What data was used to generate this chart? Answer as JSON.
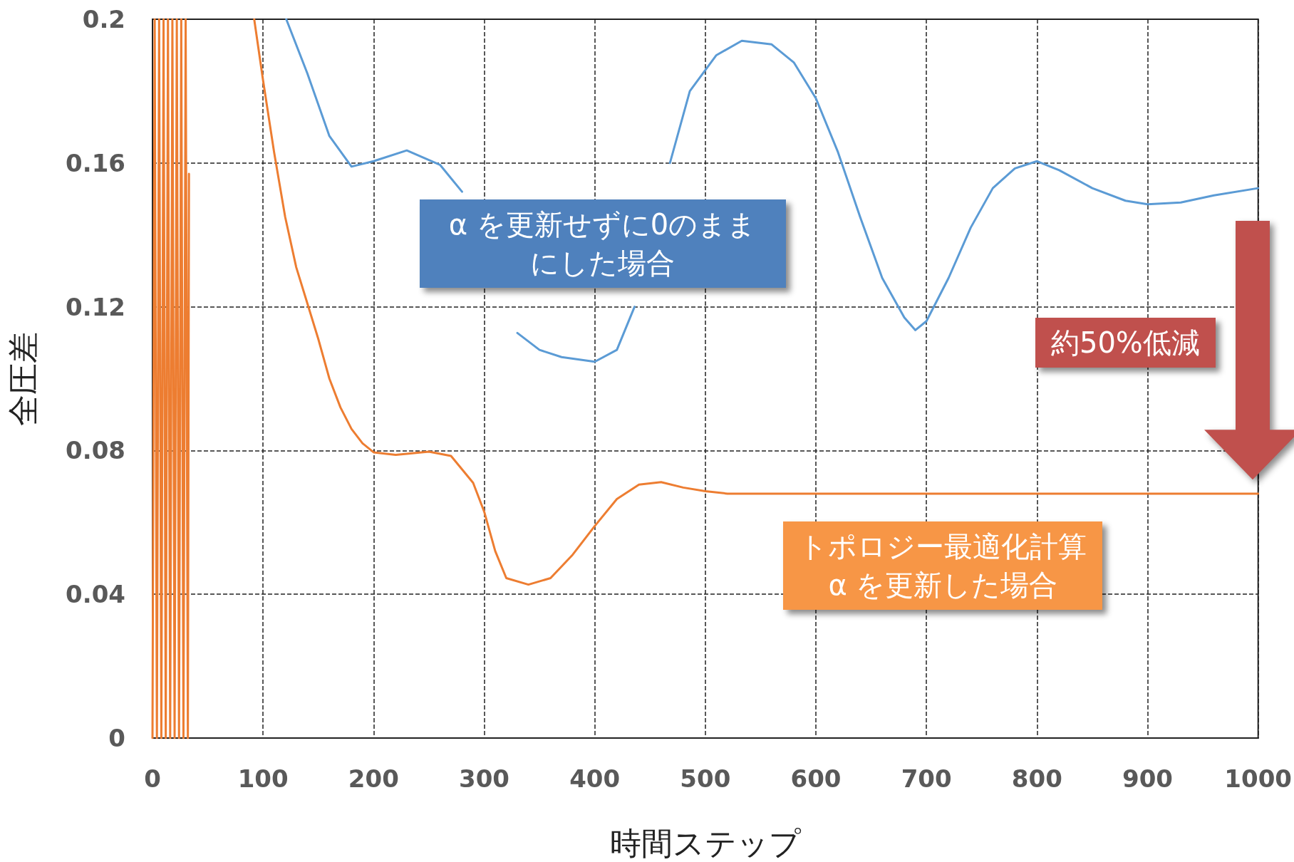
{
  "chart_data": {
    "type": "line",
    "xlabel": "時間ステップ",
    "ylabel": "全圧差",
    "xlim": [
      0,
      1000
    ],
    "xticks": [
      0,
      100,
      200,
      300,
      400,
      500,
      600,
      700,
      800,
      900,
      1000
    ],
    "ylim": [
      0,
      0.2
    ],
    "yticks": [
      0,
      0.04,
      0.08,
      0.12,
      0.16,
      0.2
    ],
    "grid": true,
    "marker": "none",
    "line_style": "solid",
    "annotations": [
      "α を更新せずに0のままにした場合",
      "トポロジー最適化計算\nα を更新した場合",
      "約50%低減"
    ],
    "series": [
      {
        "color": "#5b9bd5",
        "x": [
          121,
          140,
          160,
          180,
          200,
          230,
          260,
          280,
          310,
          330,
          350,
          370,
          400,
          420,
          436,
          452,
          468,
          486,
          510,
          533,
          560,
          580,
          600,
          620,
          640,
          660,
          680,
          690,
          700,
          720,
          740,
          760,
          780,
          800,
          820,
          850,
          880,
          900,
          930,
          960,
          1000
        ],
        "values": [
          0.2,
          0.185,
          0.1675,
          0.159,
          0.1605,
          0.1635,
          0.1595,
          0.152,
          null,
          0.1127,
          0.108,
          0.106,
          0.1047,
          0.108,
          0.12,
          null,
          0.16,
          0.18,
          0.19,
          0.194,
          0.193,
          0.188,
          0.178,
          0.163,
          0.145,
          0.128,
          0.117,
          0.1135,
          0.116,
          0.128,
          0.142,
          0.153,
          0.1585,
          0.1605,
          0.158,
          0.153,
          0.1495,
          0.1485,
          0.149,
          0.151,
          0.153
        ]
      },
      {
        "color": "#ed7d31",
        "x": [
          0,
          2,
          4,
          6,
          8,
          10,
          12,
          14,
          16,
          18,
          20,
          22,
          24,
          26,
          28,
          30,
          32,
          33,
          34,
          92,
          100,
          110,
          120,
          130,
          140,
          150,
          160,
          170,
          180,
          190,
          200,
          220,
          250,
          270,
          290,
          300,
          310,
          320,
          340,
          360,
          380,
          400,
          420,
          440,
          460,
          480,
          500,
          520,
          1000
        ],
        "values": [
          0,
          0.2,
          0,
          0.2,
          0,
          0.2,
          0,
          0.2,
          0,
          0.2,
          0,
          0.2,
          0,
          0.2,
          0,
          0.2,
          0,
          0.157,
          null,
          0.2,
          0.183,
          0.163,
          0.145,
          0.131,
          0.121,
          0.111,
          0.1,
          0.092,
          0.086,
          0.082,
          0.0795,
          0.0788,
          0.0797,
          0.0785,
          0.071,
          0.063,
          0.052,
          0.0445,
          0.0427,
          0.0445,
          0.051,
          0.059,
          0.0665,
          0.0705,
          0.0712,
          0.0697,
          0.0687,
          0.068,
          0.068
        ]
      }
    ]
  }
}
